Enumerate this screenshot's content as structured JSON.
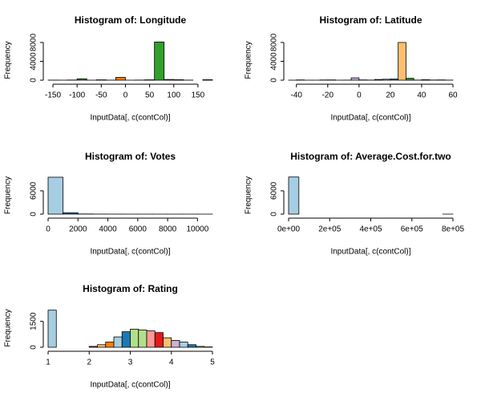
{
  "chart_data": [
    {
      "type": "histogram",
      "title": "Histogram of: Longitude",
      "x_label": "InputData[, c(contCol)]",
      "y_label": "Frequency",
      "bins": [
        -160,
        -140,
        -120,
        -100,
        -80,
        -60,
        -40,
        -20,
        0,
        20,
        40,
        60,
        80,
        100,
        120,
        140,
        160,
        180
      ],
      "values": [
        20,
        10,
        40,
        300,
        10,
        80,
        20,
        600,
        10,
        30,
        80,
        8100,
        150,
        100,
        20,
        0,
        100
      ],
      "colors": [
        "#A6CEE3",
        "#1F78B4",
        "#B2DF8A",
        "#33A02C",
        "#FB9A99",
        "#E31A1C",
        "#FDBF6F",
        "#FF7F00",
        "#CAB2D6",
        "#6A3D9A",
        "#FFFF99",
        "#33A02C",
        "#A6CEE3",
        "#1F78B4",
        "#B2DF8A",
        "#33A02C",
        "#FB9A99"
      ],
      "xlim": [
        -160,
        180
      ],
      "xticks": [
        -150,
        -100,
        -50,
        0,
        50,
        100,
        150
      ],
      "ylim": [
        0,
        8500
      ],
      "yticks": [
        0,
        4000,
        8000
      ]
    },
    {
      "type": "histogram",
      "title": "Histogram of: Latitude",
      "x_label": "InputData[, c(contCol)]",
      "y_label": "Frequency",
      "bins": [
        -45,
        -40,
        -35,
        -30,
        -25,
        -20,
        -15,
        -10,
        -5,
        0,
        5,
        10,
        15,
        20,
        25,
        30,
        35,
        40,
        45,
        50,
        55,
        60
      ],
      "values": [
        10,
        60,
        10,
        10,
        50,
        60,
        10,
        20,
        500,
        60,
        30,
        150,
        200,
        250,
        8000,
        400,
        30,
        100,
        40,
        60,
        20
      ],
      "colors": [
        "#A6CEE3",
        "#1F78B4",
        "#B2DF8A",
        "#33A02C",
        "#FB9A99",
        "#E31A1C",
        "#FDBF6F",
        "#FF7F00",
        "#CAB2D6",
        "#6A3D9A",
        "#FFFF99",
        "#B15928",
        "#A6CEE3",
        "#1F78B4",
        "#FDBF6F",
        "#33A02C",
        "#FB9A99",
        "#E31A1C",
        "#FDBF6F",
        "#FF7F00",
        "#CAB2D6"
      ],
      "xlim": [
        -45,
        60
      ],
      "xticks": [
        -40,
        -20,
        0,
        20,
        40,
        60
      ],
      "ylim": [
        0,
        8500
      ],
      "yticks": [
        0,
        4000,
        8000
      ]
    },
    {
      "type": "histogram",
      "title": "Histogram of: Votes",
      "x_label": "InputData[, c(contCol)]",
      "y_label": "Frequency",
      "bins": [
        0,
        1000,
        2000,
        3000,
        4000,
        5000,
        6000,
        7000,
        8000,
        9000,
        10000,
        11000
      ],
      "values": [
        9500,
        350,
        40,
        15,
        8,
        5,
        3,
        2,
        2,
        1,
        1
      ],
      "colors": [
        "#A6CEE3",
        "#1F78B4",
        "#B2DF8A",
        "#33A02C",
        "#FB9A99",
        "#E31A1C",
        "#FDBF6F",
        "#FF7F00",
        "#CAB2D6",
        "#6A3D9A",
        "#FFFF99"
      ],
      "xlim": [
        0,
        11000
      ],
      "xticks": [
        0,
        2000,
        4000,
        6000,
        8000,
        10000
      ],
      "ylim": [
        0,
        9700
      ],
      "yticks": [
        0,
        6000
      ]
    },
    {
      "type": "histogram",
      "title": "Histogram of: Average.Cost.for.two",
      "x_label": "InputData[, c(contCol)]",
      "y_label": "Frequency",
      "bins": [
        0,
        50000,
        100000,
        150000,
        200000,
        250000,
        300000,
        350000,
        400000,
        450000,
        500000,
        550000,
        600000,
        650000,
        700000,
        750000,
        800000
      ],
      "values": [
        9550,
        0,
        0,
        0,
        0,
        0,
        0,
        0,
        0,
        0,
        0,
        0,
        0,
        0,
        0,
        1
      ],
      "colors": [
        "#A6CEE3",
        "#1F78B4",
        "#B2DF8A",
        "#33A02C",
        "#FB9A99",
        "#E31A1C",
        "#FDBF6F",
        "#FF7F00",
        "#CAB2D6",
        "#6A3D9A",
        "#FFFF99",
        "#B15928",
        "#A6CEE3",
        "#1F78B4",
        "#B2DF8A",
        "#33A02C"
      ],
      "xlim": [
        0,
        800000
      ],
      "xticks": [
        {
          "value": 0,
          "label": "0e+00"
        },
        {
          "value": 200000,
          "label": "2e+05"
        },
        {
          "value": 400000,
          "label": "4e+05"
        },
        {
          "value": 600000,
          "label": "6e+05"
        },
        {
          "value": 800000,
          "label": "8e+05"
        }
      ],
      "ylim": [
        0,
        9700
      ],
      "yticks": [
        0,
        6000
      ]
    },
    {
      "type": "histogram",
      "title": "Histogram of: Rating",
      "x_label": "InputData[, c(contCol)]",
      "y_label": "Frequency",
      "bins": [
        1,
        1.2,
        1.4,
        1.6,
        1.8,
        2,
        2.2,
        2.4,
        2.6,
        2.8,
        3,
        3.2,
        3.4,
        3.6,
        3.8,
        4,
        4.2,
        4.4,
        4.6,
        4.8,
        5
      ],
      "values": [
        2150,
        0,
        0,
        0,
        0,
        50,
        150,
        300,
        600,
        900,
        1050,
        1000,
        950,
        850,
        550,
        400,
        300,
        150,
        50,
        20
      ],
      "colors": [
        "#A6CEE3",
        "#1F78B4",
        "#B2DF8A",
        "#33A02C",
        "#FB9A99",
        "#E31A1C",
        "#FDBF6F",
        "#FF7F00",
        "#A6CEE3",
        "#1F78B4",
        "#B2DF8A",
        "#B2DF8A",
        "#FB9A99",
        "#E31A1C",
        "#FDBF6F",
        "#CAB2D6",
        "#A6CEE3",
        "#1F78B4",
        "#B2DF8A",
        "#33A02C"
      ],
      "xlim": [
        1,
        5
      ],
      "xticks": [
        1,
        2,
        3,
        4,
        5
      ],
      "ylim": [
        0,
        2230
      ],
      "yticks": [
        0,
        1500
      ]
    }
  ]
}
